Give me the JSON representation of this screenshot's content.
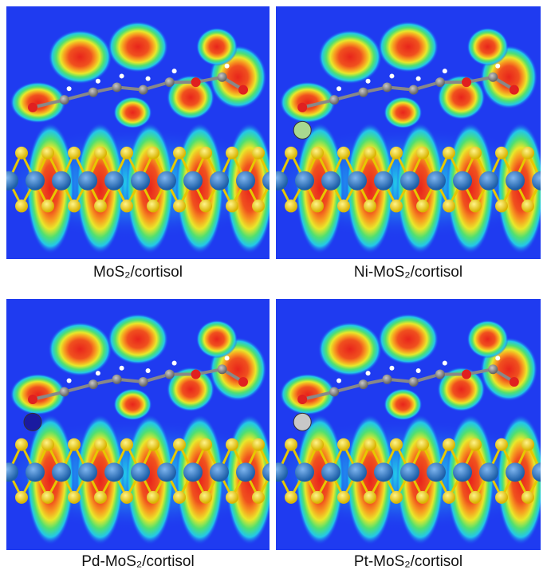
{
  "panels": [
    {
      "caption": "MoS₂/cortisol"
    },
    {
      "caption": "Ni-MoS₂/cortisol"
    },
    {
      "caption": "Pd-MoS₂/cortisol"
    },
    {
      "caption": "Pt-MoS₂/cortisol"
    }
  ]
}
